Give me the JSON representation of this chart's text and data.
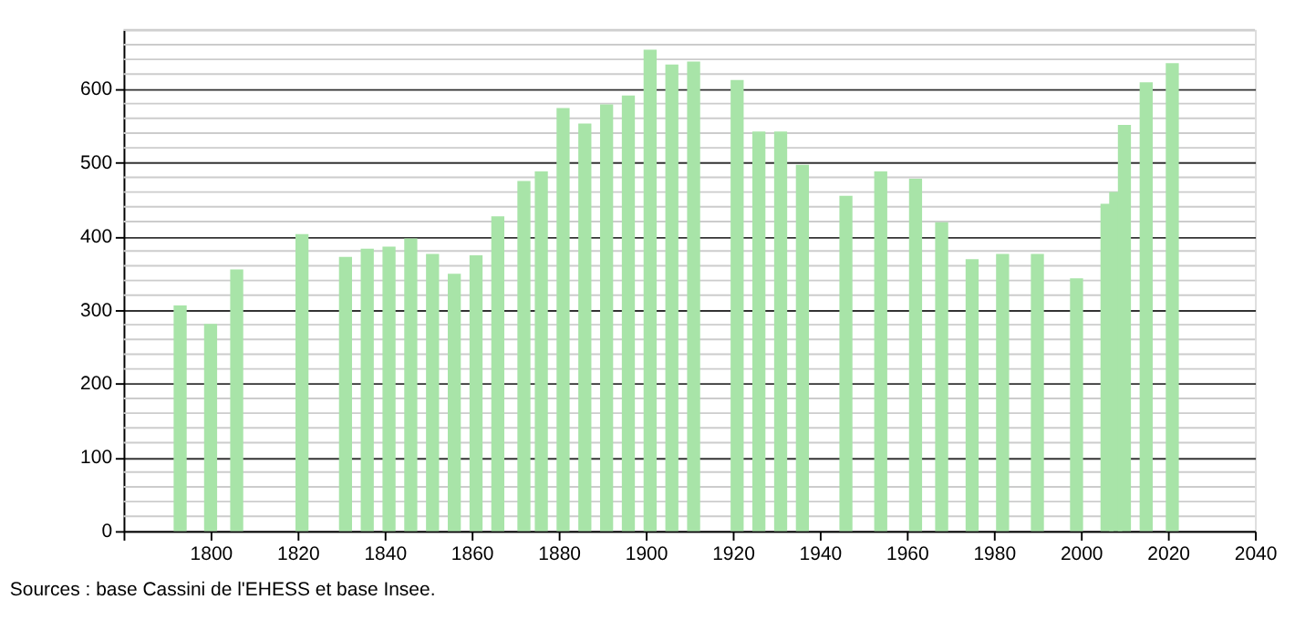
{
  "chart_data": {
    "type": "bar",
    "x": [
      1793,
      1800,
      1806,
      1821,
      1831,
      1836,
      1841,
      1846,
      1851,
      1856,
      1861,
      1866,
      1872,
      1876,
      1881,
      1886,
      1891,
      1896,
      1901,
      1906,
      1911,
      1921,
      1926,
      1931,
      1936,
      1946,
      1954,
      1962,
      1968,
      1975,
      1982,
      1990,
      1999,
      2006,
      2008,
      2010,
      2015,
      2021
    ],
    "series": [
      {
        "color": "#a8e4a8",
        "values": [
          306,
          281,
          355,
          403,
          372,
          383,
          386,
          397,
          376,
          349,
          374,
          427,
          475,
          488,
          574,
          553,
          579,
          591,
          653,
          633,
          637,
          612,
          542,
          542,
          497,
          455,
          488,
          478,
          419,
          369,
          376,
          376,
          343,
          444,
          460,
          551,
          609,
          635
        ]
      }
    ],
    "xlim": [
      1780,
      2040
    ],
    "xticks": [
      {
        "value": 1780,
        "label": null
      },
      1800,
      1820,
      1840,
      1860,
      1880,
      1900,
      1920,
      1940,
      1960,
      1980,
      2000,
      2020,
      2040
    ],
    "ylim": [
      0,
      680
    ],
    "yticks": [
      0,
      100,
      200,
      300,
      400,
      500,
      600
    ],
    "grid": "y",
    "annotations": [
      "Sources : base Cassini de l'EHESS et base Insee."
    ]
  }
}
